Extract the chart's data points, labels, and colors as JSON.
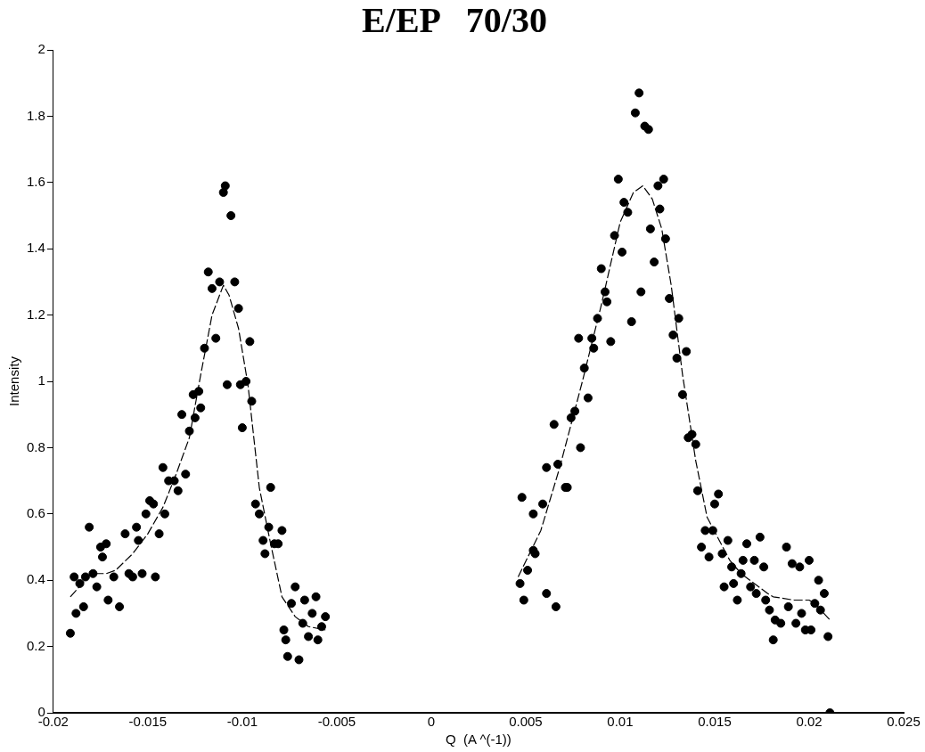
{
  "chart_data": {
    "type": "scatter",
    "title": "E/EP   70/30",
    "xlabel": "Q  (A ^(-1))",
    "ylabel": "Intensity",
    "xlim": [
      -0.02,
      0.025
    ],
    "xticks": [
      -0.02,
      -0.015,
      -0.01,
      -0.005,
      0,
      0.005,
      0.01,
      0.015,
      0.02,
      0.025
    ],
    "ylim": [
      0,
      2
    ],
    "yticks": [
      0,
      0.2,
      0.4,
      0.6,
      0.8,
      1,
      1.2,
      1.4,
      1.6,
      1.8,
      2
    ],
    "grid": false,
    "legend": false,
    "series": [
      {
        "type": "scatter",
        "color": "#000000",
        "marker": "circle",
        "x": [
          -0.0191,
          -0.0189,
          -0.0188,
          -0.0186,
          -0.0184,
          -0.0183,
          -0.0181,
          -0.0179,
          -0.0177,
          -0.0175,
          -0.0174,
          -0.0172,
          -0.0171,
          -0.0168,
          -0.0165,
          -0.0162,
          -0.016,
          -0.0158,
          -0.0156,
          -0.0155,
          -0.0153,
          -0.0151,
          -0.0149,
          -0.0147,
          -0.0146,
          -0.0144,
          -0.0142,
          -0.0141,
          -0.0139,
          -0.0136,
          -0.0134,
          -0.0132,
          -0.013,
          -0.0128,
          -0.0126,
          -0.0125,
          -0.0123,
          -0.0122,
          -0.012,
          -0.0118,
          -0.0116,
          -0.0114,
          -0.0112,
          -0.011,
          -0.0109,
          -0.0108,
          -0.0106,
          -0.0104,
          -0.0102,
          -0.0101,
          -0.0098,
          -0.01,
          -0.0096,
          -0.0095,
          -0.0093,
          -0.0091,
          -0.0089,
          -0.0088,
          -0.0086,
          -0.0085,
          -0.0083,
          -0.0081,
          -0.0079,
          -0.0078,
          -0.0077,
          -0.0076,
          -0.0074,
          -0.0072,
          -0.007,
          -0.0068,
          -0.0067,
          -0.0065,
          -0.0063,
          -0.0061,
          -0.006,
          -0.0058,
          -0.0056,
          0.0048,
          0.0054,
          0.0059,
          0.0061,
          0.0067,
          0.0065,
          0.0071,
          0.0072,
          0.0074,
          0.0076,
          0.0079,
          0.0081,
          0.0083,
          0.0078,
          0.0085,
          0.0086,
          0.0088,
          0.009,
          0.0092,
          0.0093,
          0.0095,
          0.0097,
          0.0099,
          0.0101,
          0.0102,
          0.0104,
          0.0106,
          0.0108,
          0.011,
          0.0111,
          0.0113,
          0.0115,
          0.0116,
          0.0118,
          0.012,
          0.0121,
          0.0123,
          0.0124,
          0.0126,
          0.0128,
          0.013,
          0.0131,
          0.0133,
          0.0135,
          0.0136,
          0.0138,
          0.014,
          0.0141,
          0.015,
          0.0152,
          0.0145,
          0.0149,
          0.0143,
          0.0147,
          0.0154,
          0.0157,
          0.0159,
          0.0155,
          0.016,
          0.0162,
          0.0164,
          0.0165,
          0.0167,
          0.0169,
          0.0171,
          0.0172,
          0.0174,
          0.0176,
          0.0177,
          0.0179,
          0.0181,
          0.0182,
          0.0185,
          0.0188,
          0.0189,
          0.0191,
          0.0193,
          0.0195,
          0.0196,
          0.0198,
          0.02,
          0.0201,
          0.0203,
          0.0205,
          0.0206,
          0.0208,
          0.021,
          0.0211,
          0.0047,
          0.0049,
          0.0051,
          0.0054,
          0.0055,
          0.0061,
          0.0066
        ],
        "values": [
          0.24,
          0.41,
          0.3,
          0.39,
          0.32,
          0.41,
          0.56,
          0.42,
          0.38,
          0.5,
          0.47,
          0.51,
          0.34,
          0.41,
          0.32,
          0.54,
          0.42,
          0.41,
          0.56,
          0.52,
          0.42,
          0.6,
          0.64,
          0.63,
          0.41,
          0.54,
          0.74,
          0.6,
          0.7,
          0.7,
          0.67,
          0.9,
          0.72,
          0.85,
          0.96,
          0.89,
          0.97,
          0.92,
          1.1,
          1.33,
          1.28,
          1.13,
          1.3,
          1.57,
          1.59,
          0.99,
          1.5,
          1.3,
          1.22,
          0.99,
          1,
          0.86,
          1.12,
          0.94,
          0.63,
          0.6,
          0.52,
          0.48,
          0.56,
          0.68,
          0.51,
          0.51,
          0.55,
          0.25,
          0.22,
          0.17,
          0.33,
          0.38,
          0.16,
          0.27,
          0.34,
          0.23,
          0.3,
          0.35,
          0.22,
          0.26,
          0.29,
          0.65,
          0.6,
          0.63,
          0.74,
          0.75,
          0.87,
          0.68,
          0.68,
          0.89,
          0.91,
          0.8,
          1.04,
          0.95,
          1.13,
          1.13,
          1.1,
          1.19,
          1.34,
          1.27,
          1.24,
          1.12,
          1.44,
          1.61,
          1.39,
          1.54,
          1.51,
          1.18,
          1.81,
          1.87,
          1.27,
          1.77,
          1.76,
          1.46,
          1.36,
          1.59,
          1.52,
          1.61,
          1.43,
          1.25,
          1.14,
          1.07,
          1.19,
          0.96,
          1.09,
          0.83,
          0.84,
          0.81,
          0.67,
          0.63,
          0.66,
          0.55,
          0.55,
          0.5,
          0.47,
          0.48,
          0.52,
          0.44,
          0.38,
          0.39,
          0.34,
          0.42,
          0.46,
          0.51,
          0.38,
          0.46,
          0.36,
          0.53,
          0.44,
          0.34,
          0.31,
          0.22,
          0.28,
          0.27,
          0.5,
          0.32,
          0.45,
          0.27,
          0.44,
          0.3,
          0.25,
          0.46,
          0.25,
          0.33,
          0.4,
          0.31,
          0.36,
          0.23,
          0,
          0.39,
          0.34,
          0.43,
          0.49,
          0.48,
          0.36,
          0.32
        ]
      },
      {
        "type": "line",
        "color": "#000000",
        "line_style": "dashed",
        "marker": "none",
        "x": [
          -0.0191,
          -0.018,
          -0.0172,
          -0.0167,
          -0.0158,
          -0.015,
          -0.0142,
          -0.0135,
          -0.0128,
          -0.0122,
          -0.0116,
          -0.011,
          -0.0107,
          -0.0102,
          -0.0097,
          -0.0091,
          -0.0085,
          -0.0079,
          -0.0072,
          -0.0065,
          -0.0056
        ],
        "values": [
          0.35,
          0.42,
          0.42,
          0.43,
          0.48,
          0.54,
          0.62,
          0.72,
          0.83,
          1.02,
          1.2,
          1.29,
          1.26,
          1.16,
          0.99,
          0.68,
          0.51,
          0.35,
          0.29,
          0.26,
          0.25
        ]
      },
      {
        "type": "line",
        "color": "#000000",
        "line_style": "dashed",
        "marker": "none",
        "x": [
          0.0046,
          0.0058,
          0.0068,
          0.008,
          0.009,
          0.01,
          0.0107,
          0.0112,
          0.0117,
          0.0122,
          0.0127,
          0.0133,
          0.014,
          0.0146,
          0.0158,
          0.0164,
          0.0178,
          0.0181,
          0.0192,
          0.02,
          0.0203,
          0.0211
        ],
        "values": [
          0.41,
          0.55,
          0.74,
          1,
          1.23,
          1.48,
          1.57,
          1.59,
          1.55,
          1.46,
          1.29,
          1.02,
          0.76,
          0.59,
          0.46,
          0.42,
          0.36,
          0.35,
          0.34,
          0.34,
          0.33,
          0.28
        ]
      }
    ]
  }
}
